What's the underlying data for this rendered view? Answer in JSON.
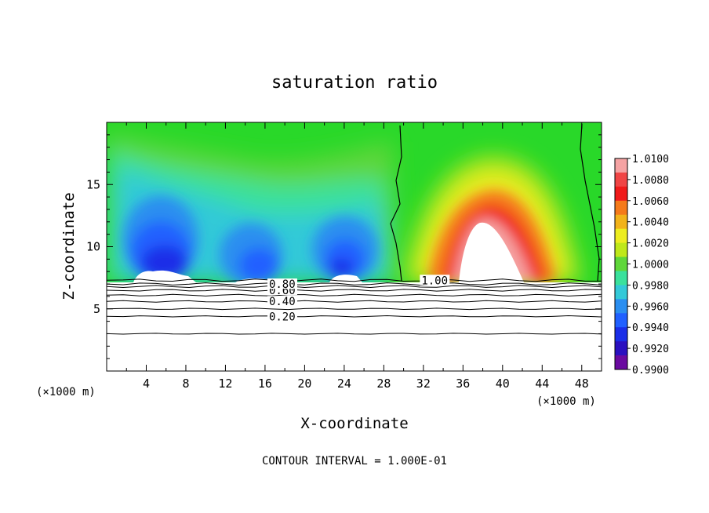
{
  "chart_data": {
    "type": "heatmap",
    "title": "saturation ratio",
    "xlabel": "X-coordinate",
    "ylabel": "Z-coordinate",
    "x_unit_label": "(×1000 m)",
    "z_unit_label": "(×1000 m)",
    "footer": "CONTOUR INTERVAL = 1.000E-01",
    "xlim": [
      0,
      50
    ],
    "ylim": [
      0,
      20
    ],
    "x_ticks": [
      "4",
      "8",
      "12",
      "16",
      "20",
      "24",
      "28",
      "32",
      "36",
      "40",
      "44",
      "48"
    ],
    "y_ticks": [
      "5",
      "10",
      "15"
    ],
    "colorbar": {
      "ticks": [
        "1.0100",
        "1.0080",
        "1.0060",
        "1.0040",
        "1.0020",
        "1.0000",
        "0.9980",
        "0.9960",
        "0.9940",
        "0.9920",
        "0.9900"
      ],
      "colors": [
        "#f5a3a3",
        "#f04545",
        "#f01a1a",
        "#f57a1a",
        "#f2b31a",
        "#eded20",
        "#bfe81a",
        "#5fd73a",
        "#3ae19c",
        "#33c9d8",
        "#2a8ef0",
        "#2060ff",
        "#1a2ee8",
        "#2a10c0",
        "#6a0aa0"
      ],
      "range": [
        0.99,
        1.01
      ]
    },
    "contour_levels_labeled": [
      {
        "label": "0.20",
        "z": 4.4
      },
      {
        "label": "0.40",
        "z": 5.6
      },
      {
        "label": "0.60",
        "z": 6.5
      },
      {
        "label": "0.80",
        "z": 7.0
      },
      {
        "label": "1.00",
        "z": 7.3
      }
    ],
    "contour_lines_z": [
      3.0,
      4.4,
      5.0,
      5.6,
      6.1,
      6.5,
      6.8,
      7.0,
      7.3
    ],
    "saturation_boundary_x": 29.5,
    "right_boundary_x": 48.5,
    "cloud_top_z": 7.4
  }
}
